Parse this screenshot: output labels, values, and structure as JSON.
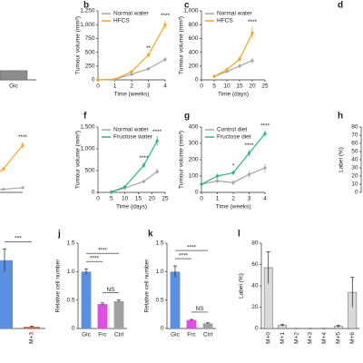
{
  "chart_data": [
    {
      "type": "bar",
      "categories": [
        "Glc"
      ],
      "values": [
        0.2
      ],
      "color": "#8c8c8c",
      "ylim": [
        0,
        1.5
      ]
    },
    {
      "type": "line",
      "label": "b",
      "xlabel": "Time (weeks)",
      "ylabel": "Tumour volume (mm³)",
      "x": [
        0,
        1,
        2,
        3,
        4
      ],
      "xlim": [
        0,
        4
      ],
      "xticks": [
        0,
        1,
        2,
        3,
        4
      ],
      "ylim": [
        0,
        1250
      ],
      "yticks": [
        0,
        250,
        500,
        750,
        {
          "value": 1000,
          "label": "1,000"
        },
        {
          "value": 1250,
          "label": "1,250"
        }
      ],
      "series": [
        {
          "name": "Normal water",
          "color": "#a6a6a6",
          "values": [
            0,
            10,
            100,
            200,
            370
          ],
          "errors": [
            0,
            0,
            20,
            30,
            40
          ]
        },
        {
          "name": "HFCS",
          "color": "#f5a623",
          "values": [
            0,
            10,
            150,
            450,
            1000
          ],
          "errors": [
            0,
            0,
            20,
            40,
            80
          ]
        }
      ],
      "annotations": [
        {
          "x": 3,
          "text": "**"
        },
        {
          "x": 4,
          "text": "****"
        }
      ]
    },
    {
      "type": "line",
      "label": "c",
      "xlabel": "Time (days)",
      "ylabel": "Tumour volume (mm³)",
      "x": [
        5,
        10,
        15,
        20
      ],
      "xlim": [
        0,
        25
      ],
      "xticks": [
        0,
        5,
        10,
        15,
        20,
        25
      ],
      "ylim": [
        0,
        1000
      ],
      "yticks": [
        0,
        200,
        400,
        600,
        800,
        {
          "value": 1000,
          "label": "1,000"
        }
      ],
      "series": [
        {
          "name": "Normal water",
          "color": "#a6a6a6",
          "values": [
            50,
            120,
            200,
            280
          ],
          "errors": [
            10,
            20,
            30,
            40
          ]
        },
        {
          "name": "HFCS",
          "color": "#f5a623",
          "values": [
            50,
            150,
            300,
            680
          ],
          "errors": [
            10,
            20,
            40,
            90
          ]
        }
      ],
      "annotations": [
        {
          "x": 20,
          "text": "****"
        }
      ]
    },
    {
      "type": "line",
      "label": "d"
    },
    {
      "type": "line",
      "x": [
        0,
        1,
        2,
        3,
        4
      ],
      "xlim": [
        0,
        4
      ],
      "ylim": [
        0,
        1250
      ],
      "series": [
        {
          "color": "#a6a6a6",
          "values": [
            0,
            10,
            40,
            60,
            90
          ],
          "errors": [
            0,
            0,
            10,
            10,
            20
          ]
        },
        {
          "color": "#f5a623",
          "values": [
            0,
            20,
            150,
            450,
            900
          ],
          "errors": [
            0,
            0,
            20,
            40,
            70
          ]
        }
      ],
      "annotations": [
        {
          "x": 4,
          "text": "****"
        }
      ]
    },
    {
      "type": "line",
      "label": "f",
      "xlabel": "Time (days)",
      "ylabel": "Tumour volume (mm³)",
      "x": [
        5,
        10,
        17,
        22
      ],
      "xlim": [
        0,
        25
      ],
      "xticks": [
        0,
        5,
        10,
        15,
        20,
        25
      ],
      "ylim": [
        0,
        1500
      ],
      "yticks": [
        0,
        500,
        {
          "value": 1000,
          "label": "1,000"
        },
        {
          "value": 1500,
          "label": "1,500"
        }
      ],
      "series": [
        {
          "name": "Normal water",
          "color": "#a6a6a6",
          "values": [
            10,
            100,
            250,
            480
          ],
          "errors": [
            0,
            20,
            40,
            70
          ]
        },
        {
          "name": "Fructose water",
          "color": "#2bb38a",
          "values": [
            10,
            130,
            620,
            1180
          ],
          "errors": [
            0,
            20,
            60,
            110
          ]
        }
      ],
      "annotations": [
        {
          "x": 17,
          "text": "****"
        },
        {
          "x": 22,
          "text": "****"
        }
      ]
    },
    {
      "type": "line",
      "label": "g",
      "xlabel": "Time (weeks)",
      "ylabel": "Tumour volume (mm³)",
      "x": [
        0,
        1,
        2,
        3,
        4
      ],
      "xlim": [
        0,
        4
      ],
      "xticks": [
        0,
        1,
        2,
        3,
        4
      ],
      "ylim": [
        0,
        400
      ],
      "yticks": [
        0,
        100,
        200,
        300,
        400
      ],
      "series": [
        {
          "name": "Control diet",
          "color": "#a6a6a6",
          "values": [
            50,
            70,
            60,
            110,
            150
          ],
          "errors": [
            10,
            15,
            15,
            20,
            25
          ]
        },
        {
          "name": "Fructose diet",
          "color": "#2bb38a",
          "values": [
            50,
            100,
            120,
            240,
            360
          ],
          "errors": [
            10,
            15,
            15,
            20,
            20
          ]
        }
      ],
      "annotations": [
        {
          "x": 2,
          "text": "*"
        },
        {
          "x": 3,
          "text": "****"
        },
        {
          "x": 4,
          "text": "****"
        }
      ]
    },
    {
      "type": "bar",
      "label": "h",
      "ylabel": "Label (%)",
      "ylim": [
        0,
        80
      ],
      "yticks": [
        0,
        10,
        20,
        30,
        40,
        50,
        60,
        70,
        80
      ]
    },
    {
      "type": "bar",
      "categories": [
        null,
        "M+3"
      ],
      "values": [
        1.2,
        0.03
      ],
      "errors": [
        0.2,
        0.01
      ],
      "colors": [
        "#5b8fe0",
        "#e0603a"
      ],
      "ylim": [
        0,
        1.5
      ],
      "rotate_labels": true,
      "annotations": [
        {
          "from": 0,
          "to": 1,
          "text": "***"
        }
      ]
    },
    {
      "type": "bar",
      "label": "j",
      "ylabel": "Relative cell number",
      "categories": [
        "Glc",
        "Frc",
        "Ctrl"
      ],
      "values": [
        1.0,
        0.43,
        0.48
      ],
      "errors": [
        0.05,
        0.02,
        0.02
      ],
      "colors": [
        "#5b8fe0",
        "#e04fe0",
        "#a0a0a0"
      ],
      "ylim": [
        0,
        1.5
      ],
      "yticks": [
        0,
        0.5,
        {
          "value": 1,
          "label": "1.0"
        },
        1.5
      ],
      "annotations": [
        {
          "from": 0,
          "to": 1,
          "text": "****"
        },
        {
          "from": 0,
          "to": 2,
          "text": "****"
        },
        {
          "from": 1,
          "to": 2,
          "text": "NS"
        }
      ]
    },
    {
      "type": "bar",
      "label": "k",
      "ylabel": "Relative cell number",
      "categories": [
        "Glc",
        "Frc",
        "Ctrl"
      ],
      "values": [
        1.0,
        0.15,
        0.09
      ],
      "errors": [
        0.1,
        0.01,
        0.01
      ],
      "colors": [
        "#5b8fe0",
        "#e04fe0",
        "#a0a0a0"
      ],
      "ylim": [
        0,
        1.5
      ],
      "yticks": [
        0,
        0.5,
        {
          "value": 1,
          "label": "1.0"
        },
        1.5
      ],
      "annotations": [
        {
          "from": 0,
          "to": 1,
          "text": "****"
        },
        {
          "from": 0,
          "to": 2,
          "text": "****"
        },
        {
          "from": 1,
          "to": 2,
          "text": "NS"
        }
      ]
    },
    {
      "type": "bar",
      "label": "l",
      "ylabel": "Label (%)",
      "categories": [
        "M+0",
        "M+1",
        "M+2",
        "M+3",
        "M+4",
        "M+5",
        "M+6"
      ],
      "values": [
        57,
        3,
        0,
        0,
        0,
        2,
        34
      ],
      "errors": [
        15,
        1,
        0,
        0,
        0,
        1,
        14
      ],
      "color": "#d9d9d9",
      "ylim": [
        0,
        80
      ],
      "yticks": [
        0,
        20,
        40,
        60,
        80
      ],
      "rotate_labels": true
    }
  ]
}
